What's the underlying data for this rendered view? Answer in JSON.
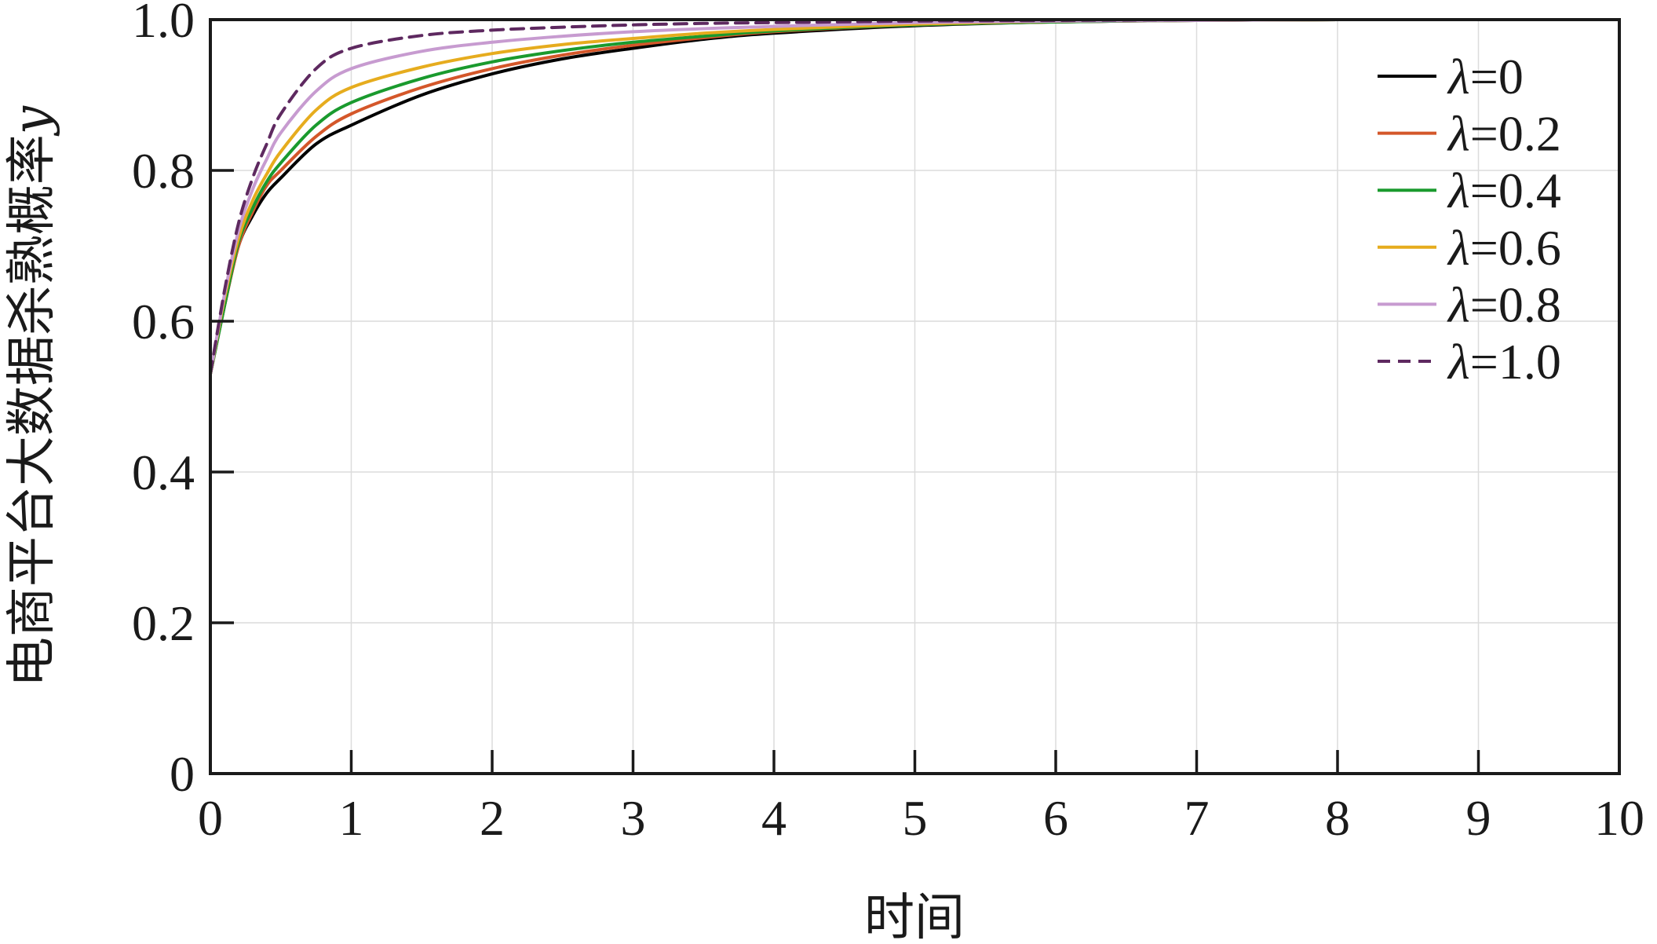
{
  "chart_data": {
    "type": "line",
    "title": "",
    "xlabel": "时间",
    "ylabel": "电商平台大数据杀熟概率",
    "ylabel_symbol": "y",
    "xlim": [
      0,
      10
    ],
    "ylim": [
      0,
      1.0
    ],
    "xticks": [
      "0",
      "1",
      "2",
      "3",
      "4",
      "5",
      "6",
      "7",
      "8",
      "9",
      "10"
    ],
    "yticks": [
      "0",
      "0.2",
      "0.4",
      "0.6",
      "0.8",
      "1.0"
    ],
    "grid": true,
    "legend_position": "top-right",
    "x": [
      0,
      0.1,
      0.2,
      0.3,
      0.4,
      0.5,
      0.75,
      1,
      1.5,
      2,
      2.5,
      3,
      3.5,
      4,
      5,
      6,
      7,
      8,
      9,
      10
    ],
    "series": [
      {
        "name": "=0",
        "symbol": "λ",
        "color": "#000000",
        "dash": "solid",
        "values": [
          0.53,
          0.62,
          0.7,
          0.74,
          0.77,
          0.79,
          0.835,
          0.86,
          0.9,
          0.928,
          0.948,
          0.962,
          0.974,
          0.982,
          0.992,
          0.997,
          0.999,
          1.0,
          1.0,
          1.0
        ]
      },
      {
        "name": "=0.2",
        "symbol": "λ",
        "color": "#d4572a",
        "dash": "solid",
        "values": [
          0.53,
          0.62,
          0.7,
          0.745,
          0.78,
          0.8,
          0.845,
          0.875,
          0.91,
          0.935,
          0.953,
          0.966,
          0.976,
          0.984,
          0.993,
          0.997,
          0.999,
          1.0,
          1.0,
          1.0
        ]
      },
      {
        "name": "=0.4",
        "symbol": "λ",
        "color": "#1a9a2e",
        "dash": "solid",
        "values": [
          0.53,
          0.62,
          0.705,
          0.75,
          0.785,
          0.81,
          0.86,
          0.89,
          0.922,
          0.944,
          0.959,
          0.97,
          0.978,
          0.985,
          0.993,
          0.997,
          0.999,
          1.0,
          1.0,
          1.0
        ]
      },
      {
        "name": "=0.6",
        "symbol": "λ",
        "color": "#e6ac1e",
        "dash": "solid",
        "values": [
          0.53,
          0.63,
          0.71,
          0.76,
          0.795,
          0.825,
          0.88,
          0.91,
          0.937,
          0.955,
          0.967,
          0.975,
          0.982,
          0.987,
          0.994,
          0.998,
          0.999,
          1.0,
          1.0,
          1.0
        ]
      },
      {
        "name": "=0.8",
        "symbol": "λ",
        "color": "#c79bd0",
        "dash": "solid",
        "values": [
          0.53,
          0.635,
          0.72,
          0.775,
          0.815,
          0.85,
          0.905,
          0.935,
          0.958,
          0.97,
          0.978,
          0.984,
          0.988,
          0.991,
          0.996,
          0.998,
          0.999,
          1.0,
          1.0,
          1.0
        ]
      },
      {
        "name": "=1.0",
        "symbol": "λ",
        "color": "#5e2960",
        "dash": "dashed",
        "values": [
          0.53,
          0.64,
          0.73,
          0.79,
          0.835,
          0.875,
          0.935,
          0.962,
          0.979,
          0.986,
          0.99,
          0.993,
          0.995,
          0.996,
          0.998,
          0.999,
          1.0,
          1.0,
          1.0,
          1.0
        ]
      }
    ]
  }
}
